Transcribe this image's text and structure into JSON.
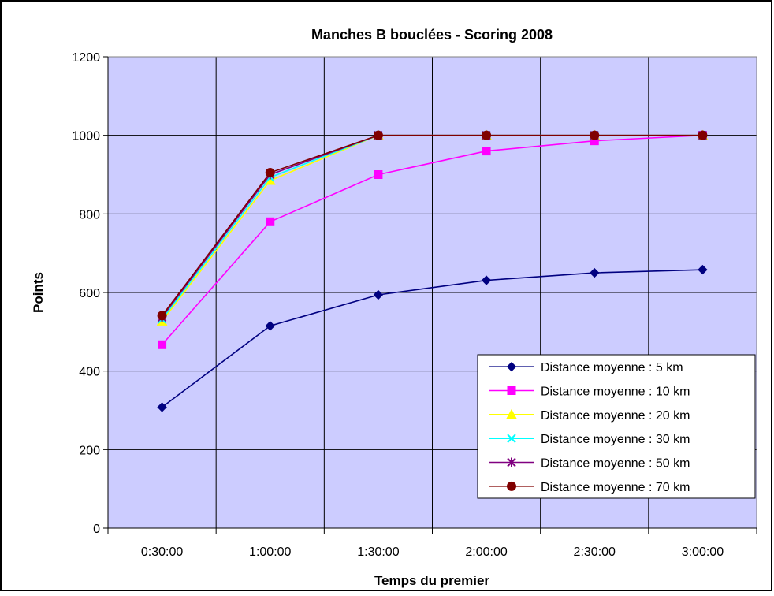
{
  "chart_data": {
    "type": "line",
    "title": "Manches B bouclées - Scoring 2008",
    "xlabel": "Temps du premier",
    "ylabel": "Points",
    "categories": [
      "0:30:00",
      "1:00:00",
      "1:30:00",
      "2:00:00",
      "2:30:00",
      "3:00:00"
    ],
    "ylim": [
      0,
      1200
    ],
    "yticks": [
      0,
      200,
      400,
      600,
      800,
      1000,
      1200
    ],
    "grid": true,
    "legend_position": "bottom-right",
    "plot_background": "#ccccff",
    "series": [
      {
        "name": "Distance moyenne : 5 km",
        "color": "#000080",
        "marker": "diamond",
        "values": [
          308,
          515,
          594,
          631,
          650,
          658
        ]
      },
      {
        "name": "Distance moyenne : 10 km",
        "color": "#ff00ff",
        "marker": "square",
        "values": [
          467,
          780,
          900,
          960,
          986,
          1000
        ]
      },
      {
        "name": "Distance moyenne : 20 km",
        "color": "#ffff00",
        "marker": "triangle",
        "values": [
          527,
          885,
          1000,
          1000,
          1000,
          1000
        ]
      },
      {
        "name": "Distance moyenne : 30 km",
        "color": "#00ffff",
        "marker": "x",
        "values": [
          532,
          893,
          1000,
          1000,
          1000,
          1000
        ]
      },
      {
        "name": "Distance moyenne : 50 km",
        "color": "#800080",
        "marker": "star",
        "values": [
          537,
          900,
          1000,
          1000,
          1000,
          1000
        ]
      },
      {
        "name": "Distance moyenne : 70 km",
        "color": "#800000",
        "marker": "circle",
        "values": [
          541,
          905,
          1000,
          1000,
          1000,
          1000
        ]
      }
    ]
  }
}
